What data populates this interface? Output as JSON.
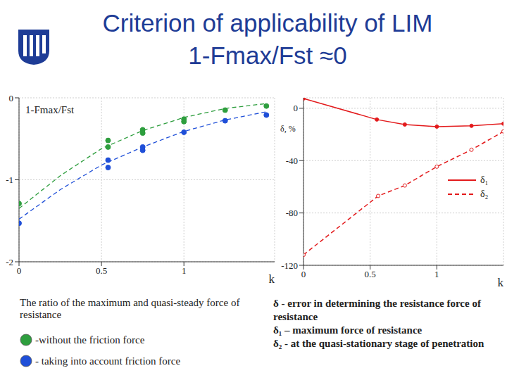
{
  "title": [
    "Criterion of applicability of LIM",
    "1-Fmax/Fst ≈0"
  ],
  "chart_data": [
    {
      "type": "scatter",
      "ylabel": "1-Fmax/Fst",
      "xlabel": "k",
      "caption": "The ratio of the maximum and quasi-steady force of resistance",
      "xlim": [
        0,
        1.55
      ],
      "xticks": [
        0,
        0.5,
        1
      ],
      "ylim": [
        -2,
        0
      ],
      "yticks": [
        0,
        -1,
        -2
      ],
      "grid": true,
      "legend": "bottom",
      "series": [
        {
          "name": "-without the friction force",
          "color": "#2e9e3e",
          "marker": "circle",
          "line_style": "dashed",
          "x": [
            0,
            0.54,
            0.54,
            0.75,
            0.75,
            1.0,
            1.0,
            1.25,
            1.5
          ],
          "values": [
            -1.29,
            -0.52,
            -0.6,
            -0.39,
            -0.43,
            -0.26,
            -0.29,
            -0.15,
            -0.1
          ],
          "fit": {
            "x": [
              0,
              0.25,
              0.5,
              0.75,
              1.0,
              1.25,
              1.5
            ],
            "values": [
              -1.35,
              -0.95,
              -0.62,
              -0.4,
              -0.24,
              -0.13,
              -0.07
            ]
          }
        },
        {
          "name": "- taking into account friction force",
          "color": "#1f4fd8",
          "marker": "circle",
          "line_style": "dashed",
          "x": [
            0,
            0.54,
            0.54,
            0.75,
            0.75,
            1.0,
            1.25,
            1.5
          ],
          "values": [
            -1.53,
            -0.76,
            -0.85,
            -0.6,
            -0.64,
            -0.42,
            -0.28,
            -0.21
          ],
          "fit": {
            "x": [
              0,
              0.25,
              0.5,
              0.75,
              1.0,
              1.25,
              1.5
            ],
            "values": [
              -1.48,
              -1.12,
              -0.82,
              -0.6,
              -0.41,
              -0.27,
              -0.17
            ]
          }
        }
      ]
    },
    {
      "type": "line",
      "xlabel": "k",
      "ylabel": "δ, %",
      "xlim": [
        0,
        1.5
      ],
      "xticks": [
        0,
        0.5,
        1
      ],
      "ylim": [
        -120,
        8
      ],
      "yticks": [
        0,
        -40,
        -80,
        -120
      ],
      "grid": true,
      "legend": "right",
      "annotations": [
        "δ - error in determining the resistance force of resistance",
        "δ₁ – maximum force of resistance",
        "δ₂ - at the quasi-stationary stage of penetration"
      ],
      "series": [
        {
          "name": "δ₁",
          "color": "#e31a1c",
          "marker": "circle",
          "line_style": "solid",
          "x": [
            0,
            0.55,
            0.76,
            1.0,
            1.26,
            1.5
          ],
          "values": [
            7.5,
            -8.6,
            -12.4,
            -14,
            -13.4,
            -11.8
          ]
        },
        {
          "name": "δ₂",
          "color": "#e31a1c",
          "marker": "open_circle",
          "line_style": "dashed",
          "x": [
            0,
            0.56,
            0.76,
            1.0,
            1.26,
            1.5
          ],
          "values": [
            -112,
            -67,
            -59,
            -44.6,
            -31.7,
            -17.7
          ]
        }
      ]
    }
  ]
}
